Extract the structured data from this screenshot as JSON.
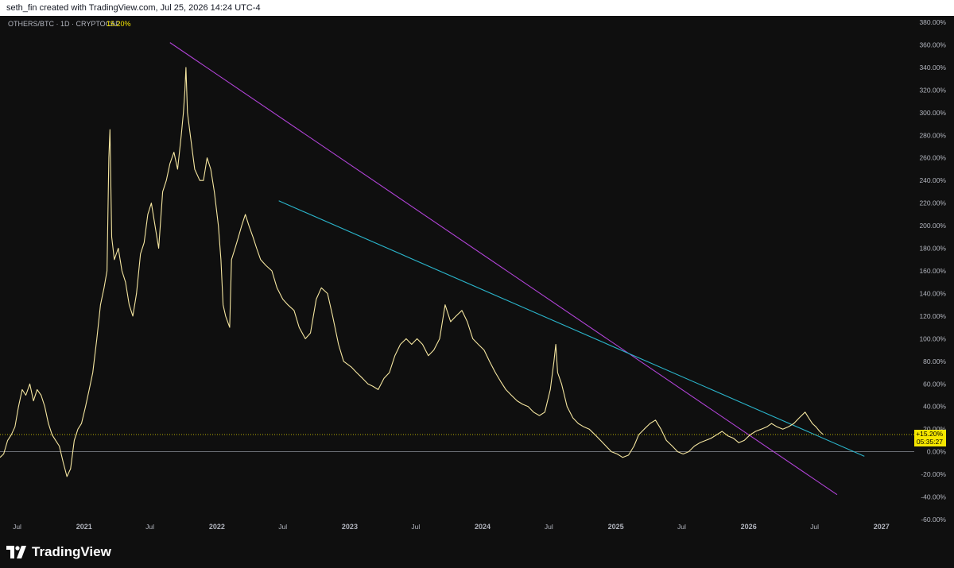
{
  "header": {
    "attribution": "seth_fin created with TradingView.com, Jul 25, 2026 14:24 UTC-4"
  },
  "footer": {
    "brand": "TradingView"
  },
  "colors": {
    "background": "#0f0f0f",
    "price_line": "#f5e6a0",
    "trendline_purple": "#b043d6",
    "trendline_cyan": "#2ab3c9",
    "last_price_badge": "#f5e600",
    "axis_text": "#b2b5be"
  },
  "chart_data": {
    "type": "line",
    "symbol_label": "OTHERS/BTC · 1D · CRYPTOCAP",
    "last_value_label": "15.20%",
    "price_badge": {
      "value": "+15.20%",
      "countdown": "05:35:27"
    },
    "y_axis": {
      "unit": "percent",
      "range": [
        -60,
        380
      ],
      "ticks": [
        "380.00%",
        "360.00%",
        "340.00%",
        "320.00%",
        "300.00%",
        "280.00%",
        "260.00%",
        "240.00%",
        "220.00%",
        "200.00%",
        "180.00%",
        "160.00%",
        "140.00%",
        "120.00%",
        "100.00%",
        "80.00%",
        "60.00%",
        "40.00%",
        "20.00%",
        "0.00%",
        "-20.00%",
        "-40.00%",
        "-60.00%"
      ]
    },
    "x_axis": {
      "range": [
        "2020-05-15",
        "2027-04-01"
      ],
      "ticks": [
        {
          "label": "Jul",
          "date": "2020-07-01"
        },
        {
          "label": "2021",
          "date": "2021-01-01"
        },
        {
          "label": "Jul",
          "date": "2021-07-01"
        },
        {
          "label": "2022",
          "date": "2022-01-01"
        },
        {
          "label": "Jul",
          "date": "2022-07-01"
        },
        {
          "label": "2023",
          "date": "2023-01-01"
        },
        {
          "label": "Jul",
          "date": "2023-07-01"
        },
        {
          "label": "2024",
          "date": "2024-01-01"
        },
        {
          "label": "Jul",
          "date": "2024-07-01"
        },
        {
          "label": "2025",
          "date": "2025-01-01"
        },
        {
          "label": "Jul",
          "date": "2025-07-01"
        },
        {
          "label": "2026",
          "date": "2026-01-01"
        },
        {
          "label": "Jul",
          "date": "2026-07-01"
        },
        {
          "label": "2027",
          "date": "2027-01-01"
        }
      ]
    },
    "grid": false,
    "zero_line": true,
    "series": [
      {
        "points": [
          [
            "2020-05-15",
            -5
          ],
          [
            "2020-05-25",
            -2
          ],
          [
            "2020-06-05",
            10
          ],
          [
            "2020-06-15",
            15
          ],
          [
            "2020-06-25",
            22
          ],
          [
            "2020-07-05",
            40
          ],
          [
            "2020-07-15",
            55
          ],
          [
            "2020-07-25",
            50
          ],
          [
            "2020-08-05",
            60
          ],
          [
            "2020-08-15",
            45
          ],
          [
            "2020-08-25",
            55
          ],
          [
            "2020-09-05",
            50
          ],
          [
            "2020-09-15",
            40
          ],
          [
            "2020-09-25",
            25
          ],
          [
            "2020-10-05",
            15
          ],
          [
            "2020-10-15",
            10
          ],
          [
            "2020-10-25",
            5
          ],
          [
            "2020-11-05",
            -10
          ],
          [
            "2020-11-15",
            -22
          ],
          [
            "2020-11-25",
            -15
          ],
          [
            "2020-12-05",
            10
          ],
          [
            "2020-12-15",
            20
          ],
          [
            "2020-12-25",
            25
          ],
          [
            "2021-01-05",
            40
          ],
          [
            "2021-01-15",
            55
          ],
          [
            "2021-01-25",
            70
          ],
          [
            "2021-02-05",
            100
          ],
          [
            "2021-02-15",
            130
          ],
          [
            "2021-02-25",
            145
          ],
          [
            "2021-03-05",
            160
          ],
          [
            "2021-03-10",
            260
          ],
          [
            "2021-03-13",
            285
          ],
          [
            "2021-03-18",
            190
          ],
          [
            "2021-03-25",
            170
          ],
          [
            "2021-04-05",
            180
          ],
          [
            "2021-04-15",
            160
          ],
          [
            "2021-04-25",
            150
          ],
          [
            "2021-05-05",
            130
          ],
          [
            "2021-05-15",
            120
          ],
          [
            "2021-05-25",
            140
          ],
          [
            "2021-06-05",
            175
          ],
          [
            "2021-06-15",
            185
          ],
          [
            "2021-06-25",
            210
          ],
          [
            "2021-07-05",
            220
          ],
          [
            "2021-07-15",
            200
          ],
          [
            "2021-07-25",
            180
          ],
          [
            "2021-08-05",
            230
          ],
          [
            "2021-08-15",
            240
          ],
          [
            "2021-08-25",
            255
          ],
          [
            "2021-09-05",
            265
          ],
          [
            "2021-09-15",
            250
          ],
          [
            "2021-09-25",
            280
          ],
          [
            "2021-10-01",
            300
          ],
          [
            "2021-10-05",
            320
          ],
          [
            "2021-10-08",
            340
          ],
          [
            "2021-10-12",
            300
          ],
          [
            "2021-10-20",
            280
          ],
          [
            "2021-11-01",
            250
          ],
          [
            "2021-11-15",
            240
          ],
          [
            "2021-11-25",
            240
          ],
          [
            "2021-12-05",
            260
          ],
          [
            "2021-12-15",
            250
          ],
          [
            "2021-12-25",
            230
          ],
          [
            "2022-01-05",
            200
          ],
          [
            "2022-01-12",
            170
          ],
          [
            "2022-01-18",
            130
          ],
          [
            "2022-01-25",
            120
          ],
          [
            "2022-02-05",
            110
          ],
          [
            "2022-02-10",
            170
          ],
          [
            "2022-02-20",
            180
          ],
          [
            "2022-03-01",
            190
          ],
          [
            "2022-03-10",
            200
          ],
          [
            "2022-03-20",
            210
          ],
          [
            "2022-03-30",
            200
          ],
          [
            "2022-04-10",
            190
          ],
          [
            "2022-04-20",
            180
          ],
          [
            "2022-05-01",
            170
          ],
          [
            "2022-05-15",
            165
          ],
          [
            "2022-06-01",
            160
          ],
          [
            "2022-06-15",
            145
          ],
          [
            "2022-07-01",
            135
          ],
          [
            "2022-07-15",
            130
          ],
          [
            "2022-08-01",
            125
          ],
          [
            "2022-08-15",
            110
          ],
          [
            "2022-09-01",
            100
          ],
          [
            "2022-09-15",
            105
          ],
          [
            "2022-10-01",
            135
          ],
          [
            "2022-10-15",
            145
          ],
          [
            "2022-11-01",
            140
          ],
          [
            "2022-11-15",
            120
          ],
          [
            "2022-12-01",
            95
          ],
          [
            "2022-12-15",
            80
          ],
          [
            "2023-01-05",
            75
          ],
          [
            "2023-01-20",
            70
          ],
          [
            "2023-02-05",
            65
          ],
          [
            "2023-02-20",
            60
          ],
          [
            "2023-03-05",
            58
          ],
          [
            "2023-03-20",
            55
          ],
          [
            "2023-04-05",
            65
          ],
          [
            "2023-04-20",
            70
          ],
          [
            "2023-05-05",
            85
          ],
          [
            "2023-05-20",
            95
          ],
          [
            "2023-06-05",
            100
          ],
          [
            "2023-06-20",
            95
          ],
          [
            "2023-07-05",
            100
          ],
          [
            "2023-07-20",
            95
          ],
          [
            "2023-08-05",
            85
          ],
          [
            "2023-08-20",
            90
          ],
          [
            "2023-09-05",
            100
          ],
          [
            "2023-09-20",
            130
          ],
          [
            "2023-10-05",
            115
          ],
          [
            "2023-10-20",
            120
          ],
          [
            "2023-11-05",
            125
          ],
          [
            "2023-11-20",
            115
          ],
          [
            "2023-12-05",
            100
          ],
          [
            "2023-12-20",
            95
          ],
          [
            "2024-01-05",
            90
          ],
          [
            "2024-01-20",
            80
          ],
          [
            "2024-02-05",
            70
          ],
          [
            "2024-02-20",
            62
          ],
          [
            "2024-03-05",
            55
          ],
          [
            "2024-03-20",
            50
          ],
          [
            "2024-04-05",
            45
          ],
          [
            "2024-04-20",
            42
          ],
          [
            "2024-05-05",
            40
          ],
          [
            "2024-05-20",
            35
          ],
          [
            "2024-06-05",
            32
          ],
          [
            "2024-06-20",
            35
          ],
          [
            "2024-07-05",
            55
          ],
          [
            "2024-07-15",
            80
          ],
          [
            "2024-07-20",
            95
          ],
          [
            "2024-07-25",
            70
          ],
          [
            "2024-08-05",
            60
          ],
          [
            "2024-08-20",
            40
          ],
          [
            "2024-09-05",
            30
          ],
          [
            "2024-09-20",
            25
          ],
          [
            "2024-10-05",
            22
          ],
          [
            "2024-10-20",
            20
          ],
          [
            "2024-11-05",
            15
          ],
          [
            "2024-11-20",
            10
          ],
          [
            "2024-12-05",
            5
          ],
          [
            "2024-12-20",
            0
          ],
          [
            "2025-01-05",
            -2
          ],
          [
            "2025-01-20",
            -5
          ],
          [
            "2025-02-05",
            -3
          ],
          [
            "2025-02-20",
            5
          ],
          [
            "2025-03-05",
            15
          ],
          [
            "2025-03-20",
            20
          ],
          [
            "2025-04-05",
            25
          ],
          [
            "2025-04-20",
            28
          ],
          [
            "2025-05-05",
            20
          ],
          [
            "2025-05-20",
            10
          ],
          [
            "2025-06-05",
            5
          ],
          [
            "2025-06-20",
            0
          ],
          [
            "2025-07-05",
            -2
          ],
          [
            "2025-07-20",
            0
          ],
          [
            "2025-08-05",
            5
          ],
          [
            "2025-08-20",
            8
          ],
          [
            "2025-09-05",
            10
          ],
          [
            "2025-09-20",
            12
          ],
          [
            "2025-10-05",
            15
          ],
          [
            "2025-10-20",
            18
          ],
          [
            "2025-11-05",
            14
          ],
          [
            "2025-11-20",
            12
          ],
          [
            "2025-12-05",
            8
          ],
          [
            "2025-12-20",
            10
          ],
          [
            "2026-01-05",
            15
          ],
          [
            "2026-01-20",
            18
          ],
          [
            "2026-02-05",
            20
          ],
          [
            "2026-02-20",
            22
          ],
          [
            "2026-03-05",
            25
          ],
          [
            "2026-03-20",
            22
          ],
          [
            "2026-04-05",
            20
          ],
          [
            "2026-04-20",
            22
          ],
          [
            "2026-05-05",
            25
          ],
          [
            "2026-05-20",
            30
          ],
          [
            "2026-06-05",
            35
          ],
          [
            "2026-06-15",
            30
          ],
          [
            "2026-06-25",
            25
          ],
          [
            "2026-07-05",
            22
          ],
          [
            "2026-07-15",
            18
          ],
          [
            "2026-07-25",
            15.2
          ]
        ]
      }
    ],
    "trendlines": [
      {
        "color": "purple",
        "from": [
          "2021-08-25",
          362
        ],
        "to": [
          "2026-09-01",
          -38
        ]
      },
      {
        "color": "cyan",
        "from": [
          "2022-06-20",
          222
        ],
        "to": [
          "2026-11-15",
          -4
        ]
      }
    ]
  }
}
